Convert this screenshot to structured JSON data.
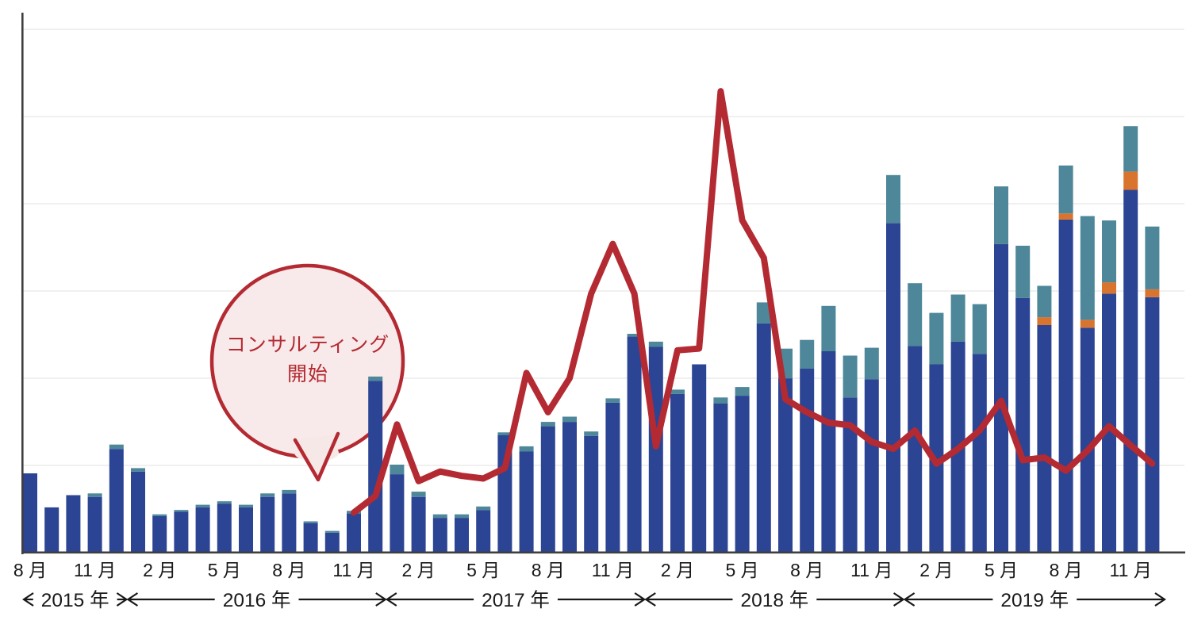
{
  "chart_data": {
    "type": "combo: stacked bar + line",
    "title": "",
    "xlabel": "",
    "ylabel": "",
    "y_axis": {
      "tick_labels_visible": false,
      "ylim": [
        0,
        600
      ],
      "gridlines": 6,
      "gridline_interval_units": 100,
      "grid": true
    },
    "legend": "none",
    "months": [
      "2015-08",
      "2015-09",
      "2015-10",
      "2015-11",
      "2015-12",
      "2016-01",
      "2016-02",
      "2016-03",
      "2016-04",
      "2016-05",
      "2016-06",
      "2016-07",
      "2016-08",
      "2016-09",
      "2016-10",
      "2016-11",
      "2016-12",
      "2017-01",
      "2017-02",
      "2017-03",
      "2017-04",
      "2017-05",
      "2017-06",
      "2017-07",
      "2017-08",
      "2017-09",
      "2017-10",
      "2017-11",
      "2017-12",
      "2018-01",
      "2018-02",
      "2018-03",
      "2018-04",
      "2018-05",
      "2018-06",
      "2018-07",
      "2018-08",
      "2018-09",
      "2018-10",
      "2018-11",
      "2018-12",
      "2019-01",
      "2019-02",
      "2019-03",
      "2019-04",
      "2019-05",
      "2019-06",
      "2019-07",
      "2019-08",
      "2019-09",
      "2019-10",
      "2019-11",
      "2019-12"
    ],
    "x_ticks": [
      {
        "index": 0,
        "label": "8 月"
      },
      {
        "index": 3,
        "label": "11 月"
      },
      {
        "index": 6,
        "label": "2 月"
      },
      {
        "index": 9,
        "label": "5 月"
      },
      {
        "index": 12,
        "label": "8 月"
      },
      {
        "index": 15,
        "label": "11 月"
      },
      {
        "index": 18,
        "label": "2 月"
      },
      {
        "index": 21,
        "label": "5 月"
      },
      {
        "index": 24,
        "label": "8 月"
      },
      {
        "index": 27,
        "label": "11 月"
      },
      {
        "index": 30,
        "label": "2 月"
      },
      {
        "index": 33,
        "label": "5 月"
      },
      {
        "index": 36,
        "label": "8 月"
      },
      {
        "index": 39,
        "label": "11 月"
      },
      {
        "index": 42,
        "label": "2 月"
      },
      {
        "index": 45,
        "label": "5 月"
      },
      {
        "index": 48,
        "label": "8 月"
      },
      {
        "index": 51,
        "label": "11 月"
      }
    ],
    "year_bands": [
      {
        "label": "2015 年",
        "from_month": 0,
        "to_month": 4
      },
      {
        "label": "2016 年",
        "from_month": 5,
        "to_month": 16
      },
      {
        "label": "2017 年",
        "from_month": 17,
        "to_month": 28
      },
      {
        "label": "2018 年",
        "from_month": 29,
        "to_month": 40
      },
      {
        "label": "2019 年",
        "from_month": 41,
        "to_month": 52
      }
    ],
    "series": [
      {
        "name": "bar-bottom-navy",
        "type": "bar",
        "stack_order": 1,
        "color": "#2c4494",
        "values": [
          90,
          51,
          65,
          63,
          118,
          92,
          41,
          46,
          51,
          55,
          51,
          63,
          67,
          33,
          22,
          44,
          196,
          89,
          63,
          39,
          39,
          48,
          134,
          115,
          144,
          149,
          133,
          171,
          247,
          235,
          181,
          215,
          170,
          179,
          262,
          199,
          210,
          230,
          177,
          198,
          377,
          236,
          215,
          241,
          227,
          353,
          291,
          260,
          381,
          257,
          296,
          415,
          292
        ]
      },
      {
        "name": "bar-middle-orange",
        "type": "bar",
        "stack_order": 2,
        "color": "#d9742f",
        "values": [
          0,
          0,
          0,
          0,
          0,
          0,
          0,
          0,
          0,
          0,
          0,
          0,
          0,
          0,
          0,
          0,
          0,
          0,
          0,
          0,
          0,
          0,
          0,
          0,
          0,
          0,
          0,
          0,
          0,
          0,
          0,
          0,
          0,
          0,
          0,
          0,
          0,
          0,
          0,
          0,
          0,
          0,
          0,
          0,
          0,
          0,
          0,
          9,
          7,
          9,
          13,
          21,
          9
        ]
      },
      {
        "name": "bar-top-teal",
        "type": "bar",
        "stack_order": 3,
        "color": "#4d8799",
        "values": [
          0,
          0,
          0,
          4,
          5,
          4,
          2,
          2,
          3,
          3,
          3,
          4,
          4,
          2,
          2,
          3,
          5,
          11,
          6,
          4,
          4,
          4,
          3,
          6,
          5,
          6,
          5,
          5,
          3,
          6,
          5,
          0,
          7,
          10,
          24,
          34,
          33,
          52,
          48,
          36,
          55,
          72,
          59,
          54,
          57,
          66,
          60,
          36,
          55,
          119,
          71,
          52,
          72
        ]
      },
      {
        "name": "red-line",
        "type": "line",
        "color": "#b42a32",
        "stroke_width": 8,
        "values": [
          null,
          null,
          null,
          null,
          null,
          null,
          null,
          null,
          null,
          null,
          null,
          null,
          null,
          null,
          null,
          46,
          65,
          147,
          82,
          93,
          88,
          85,
          97,
          206,
          161,
          200,
          297,
          354,
          297,
          122,
          232,
          234,
          529,
          381,
          338,
          176,
          161,
          149,
          146,
          127,
          119,
          140,
          102,
          119,
          140,
          174,
          106,
          109,
          94,
          117,
          145,
          123,
          102
        ]
      }
    ],
    "annotation": {
      "line1": "コンサルティング",
      "line2": "開始",
      "shape": "speech-bubble-circle",
      "text_color": "#b42a32",
      "border_color": "#b42a32",
      "fill_color": "#f7e8e8"
    },
    "colors": {
      "bar_navy": "#2c4494",
      "bar_teal": "#4d8799",
      "bar_orange": "#d9742f",
      "line_red": "#b42a32",
      "axis": "#3f3f3f",
      "gridline": "#ececec",
      "tick_text": "#191919"
    }
  }
}
